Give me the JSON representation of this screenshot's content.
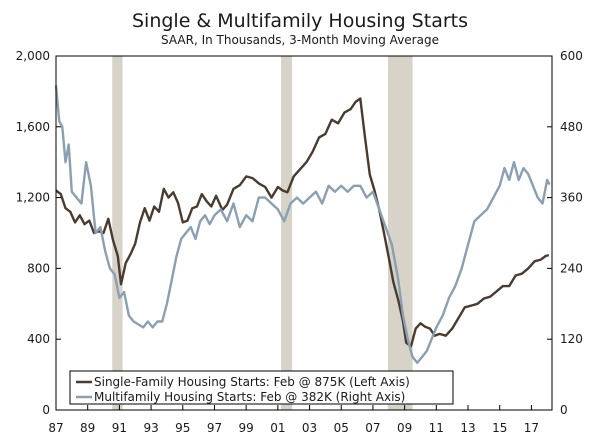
{
  "chart_data": {
    "type": "line",
    "title": "Single & Multifamily Housing Starts",
    "subtitle": "SAAR, In Thousands, 3-Month Moving Average",
    "x_ticks": [
      "87",
      "89",
      "91",
      "93",
      "95",
      "97",
      "99",
      "01",
      "03",
      "05",
      "07",
      "09",
      "11",
      "13",
      "15",
      "17"
    ],
    "x_tick_years": [
      1987,
      1989,
      1991,
      1993,
      1995,
      1997,
      1999,
      2001,
      2003,
      2005,
      2007,
      2009,
      2011,
      2013,
      2015,
      2017
    ],
    "xlim": [
      1987.0,
      2018.3
    ],
    "left_axis": {
      "ylim": [
        0,
        2000
      ],
      "ticks": [
        "0",
        "400",
        "800",
        "1,200",
        "1,600",
        "2,000"
      ],
      "tick_values": [
        0,
        400,
        800,
        1200,
        1600,
        2000
      ]
    },
    "right_axis": {
      "ylim": [
        0,
        600
      ],
      "ticks": [
        "0",
        "120",
        "240",
        "360",
        "480",
        "600"
      ],
      "tick_values": [
        0,
        120,
        240,
        360,
        480,
        600
      ]
    },
    "recessions": [
      [
        1990.55,
        1991.2
      ],
      [
        2001.2,
        2001.9
      ],
      [
        2007.95,
        2009.5
      ]
    ],
    "legend_position": "bottom-left",
    "grid": false,
    "series": [
      {
        "name": "Single-Family Housing Starts: Feb @ 875K (Left Axis)",
        "axis": "left",
        "color": "#4a3b2e",
        "x": [
          1987.0,
          1987.3,
          1987.6,
          1987.9,
          1988.2,
          1988.5,
          1988.8,
          1989.1,
          1989.4,
          1989.7,
          1990.0,
          1990.3,
          1990.6,
          1990.9,
          1991.1,
          1991.4,
          1991.7,
          1992.0,
          1992.3,
          1992.6,
          1992.9,
          1993.2,
          1993.5,
          1993.8,
          1994.1,
          1994.4,
          1994.7,
          1995.0,
          1995.3,
          1995.6,
          1995.9,
          1996.2,
          1996.5,
          1996.8,
          1997.1,
          1997.5,
          1997.8,
          1998.2,
          1998.6,
          1999.0,
          1999.4,
          1999.8,
          2000.2,
          2000.6,
          2001.0,
          2001.3,
          2001.6,
          2002.0,
          2002.4,
          2002.8,
          2003.2,
          2003.6,
          2004.0,
          2004.4,
          2004.8,
          2005.2,
          2005.6,
          2005.9,
          2006.2,
          2006.5,
          2006.8,
          2007.1,
          2007.4,
          2007.7,
          2008.0,
          2008.3,
          2008.6,
          2008.9,
          2009.1,
          2009.4,
          2009.7,
          2010.0,
          2010.3,
          2010.6,
          2010.9,
          2011.2,
          2011.6,
          2012.0,
          2012.4,
          2012.8,
          2013.2,
          2013.6,
          2014.0,
          2014.4,
          2014.8,
          2015.2,
          2015.6,
          2016.0,
          2016.4,
          2016.8,
          2017.2,
          2017.6,
          2017.9,
          2018.1
        ],
        "values": [
          1240,
          1220,
          1140,
          1120,
          1060,
          1100,
          1050,
          1070,
          1000,
          1010,
          1000,
          1080,
          960,
          870,
          710,
          830,
          880,
          940,
          1060,
          1140,
          1070,
          1150,
          1120,
          1250,
          1200,
          1230,
          1170,
          1060,
          1070,
          1140,
          1150,
          1220,
          1180,
          1150,
          1210,
          1130,
          1160,
          1250,
          1270,
          1320,
          1310,
          1280,
          1260,
          1200,
          1260,
          1240,
          1230,
          1320,
          1360,
          1400,
          1460,
          1540,
          1560,
          1640,
          1620,
          1680,
          1700,
          1740,
          1760,
          1540,
          1330,
          1240,
          1130,
          1000,
          860,
          720,
          620,
          500,
          380,
          360,
          460,
          490,
          470,
          460,
          420,
          430,
          420,
          460,
          520,
          580,
          590,
          600,
          630,
          640,
          670,
          700,
          700,
          760,
          770,
          800,
          840,
          850,
          870,
          875
        ]
      },
      {
        "name": "Multifamily Housing Starts: Feb @ 382K (Right Axis)",
        "axis": "right",
        "color": "#8a9fb1",
        "x": [
          1987.0,
          1987.2,
          1987.4,
          1987.6,
          1987.8,
          1988.0,
          1988.3,
          1988.6,
          1988.9,
          1989.2,
          1989.5,
          1989.8,
          1990.1,
          1990.4,
          1990.7,
          1991.0,
          1991.3,
          1991.6,
          1991.9,
          1992.2,
          1992.5,
          1992.8,
          1993.1,
          1993.4,
          1993.7,
          1994.0,
          1994.3,
          1994.6,
          1994.9,
          1995.2,
          1995.5,
          1995.8,
          1996.1,
          1996.4,
          1996.7,
          1997.0,
          1997.4,
          1997.8,
          1998.2,
          1998.6,
          1999.0,
          1999.4,
          1999.8,
          2000.2,
          2000.6,
          2001.0,
          2001.4,
          2001.8,
          2002.2,
          2002.6,
          2003.0,
          2003.4,
          2003.8,
          2004.2,
          2004.6,
          2005.0,
          2005.4,
          2005.8,
          2006.2,
          2006.6,
          2007.0,
          2007.4,
          2007.8,
          2008.2,
          2008.6,
          2008.9,
          2009.2,
          2009.5,
          2009.8,
          2010.1,
          2010.4,
          2010.7,
          2011.0,
          2011.4,
          2011.8,
          2012.2,
          2012.6,
          2013.0,
          2013.4,
          2013.8,
          2014.2,
          2014.6,
          2015.0,
          2015.3,
          2015.6,
          2015.9,
          2016.2,
          2016.5,
          2016.8,
          2017.1,
          2017.4,
          2017.7,
          2018.0,
          2018.15
        ],
        "values": [
          550,
          490,
          480,
          420,
          450,
          370,
          360,
          350,
          420,
          380,
          300,
          310,
          270,
          240,
          230,
          190,
          200,
          160,
          150,
          145,
          140,
          150,
          140,
          150,
          150,
          180,
          220,
          260,
          290,
          300,
          310,
          290,
          320,
          330,
          315,
          330,
          340,
          320,
          350,
          310,
          330,
          320,
          360,
          360,
          350,
          340,
          320,
          350,
          360,
          350,
          360,
          370,
          350,
          380,
          370,
          380,
          370,
          380,
          380,
          360,
          370,
          340,
          310,
          280,
          220,
          160,
          120,
          90,
          80,
          90,
          100,
          120,
          140,
          160,
          190,
          210,
          240,
          280,
          320,
          330,
          340,
          360,
          380,
          410,
          390,
          420,
          390,
          410,
          400,
          380,
          360,
          350,
          390,
          382
        ]
      }
    ]
  }
}
